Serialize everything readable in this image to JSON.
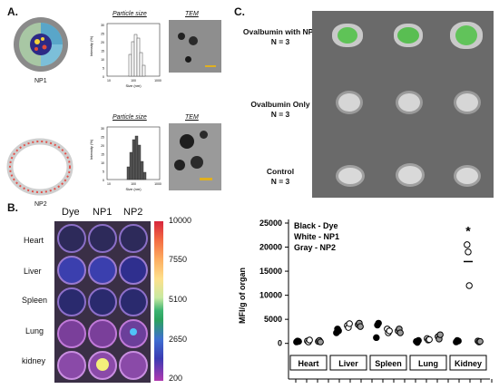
{
  "panel_a": {
    "label": "A.",
    "np1": {
      "name": "NP1",
      "psize_title": "Particle size",
      "tem_title": "TEM",
      "ylabel": "Intensity (%)",
      "xlabel": "Size (nm)",
      "xt": [
        "10",
        "100",
        "1000"
      ],
      "yt": [
        "30",
        "25",
        "20",
        "15",
        "10",
        "5",
        "0"
      ]
    },
    "np2": {
      "name": "NP2",
      "psize_title": "Particle size",
      "tem_title": "TEM",
      "ylabel": "Intensity (%)",
      "xlabel": "Size (nm)",
      "xt": [
        "10",
        "100",
        "1000"
      ],
      "yt": [
        "30",
        "25",
        "20",
        "15",
        "10",
        "5",
        "0"
      ]
    }
  },
  "panel_b": {
    "label": "B.",
    "columns": [
      "Dye",
      "NP1",
      "NP2"
    ],
    "rows": [
      "Heart",
      "Liver",
      "Spleen",
      "Lung",
      "kidney"
    ],
    "scale_ticks": [
      "10000",
      "7550",
      "5100",
      "2650",
      "200"
    ]
  },
  "panel_c": {
    "label": "C.",
    "groups": [
      {
        "name": "Ovalbumin with NPs",
        "n": "N = 3"
      },
      {
        "name": "Ovalbumin Only",
        "n": "N = 3"
      },
      {
        "name": "Control",
        "n": "N = 3"
      }
    ]
  },
  "chart_data": {
    "type": "scatter",
    "ylabel": "MFI/g of organ",
    "ylim": [
      -1000,
      25000
    ],
    "yticks": [
      "25000",
      "20000",
      "15000",
      "10000",
      "5000",
      "0"
    ],
    "legend": [
      "Black - Dye",
      "White - NP1",
      "Gray - NP2"
    ],
    "categories": [
      "Heart",
      "Liver",
      "Spleen",
      "Lung",
      "Kidney"
    ],
    "annotation": "*",
    "series": [
      {
        "name": "Dye",
        "color": "#000000",
        "points": {
          "Heart": [
            300,
            500,
            400
          ],
          "Liver": [
            2200,
            3000,
            2600
          ],
          "Spleen": [
            1200,
            3800,
            4200
          ],
          "Lung": [
            400,
            200,
            600
          ],
          "Kidney": [
            300,
            600,
            500
          ]
        }
      },
      {
        "name": "NP1",
        "color": "#ffffff",
        "points": {
          "Heart": [
            500,
            300,
            700
          ],
          "Liver": [
            3700,
            3300,
            4100
          ],
          "Spleen": [
            3000,
            2200,
            2600
          ],
          "Lung": [
            1000,
            700,
            800
          ],
          "Kidney": [
            20500,
            19000,
            12000
          ]
        }
      },
      {
        "name": "NP2",
        "color": "#9a9a9a",
        "points": {
          "Heart": [
            400,
            600,
            300
          ],
          "Liver": [
            3900,
            4200,
            3500
          ],
          "Spleen": [
            2600,
            3000,
            2200
          ],
          "Lung": [
            1400,
            900,
            1800
          ],
          "Kidney": [
            500,
            300,
            400
          ]
        }
      }
    ],
    "means": {
      "Kidney_NP1": 17000
    }
  }
}
